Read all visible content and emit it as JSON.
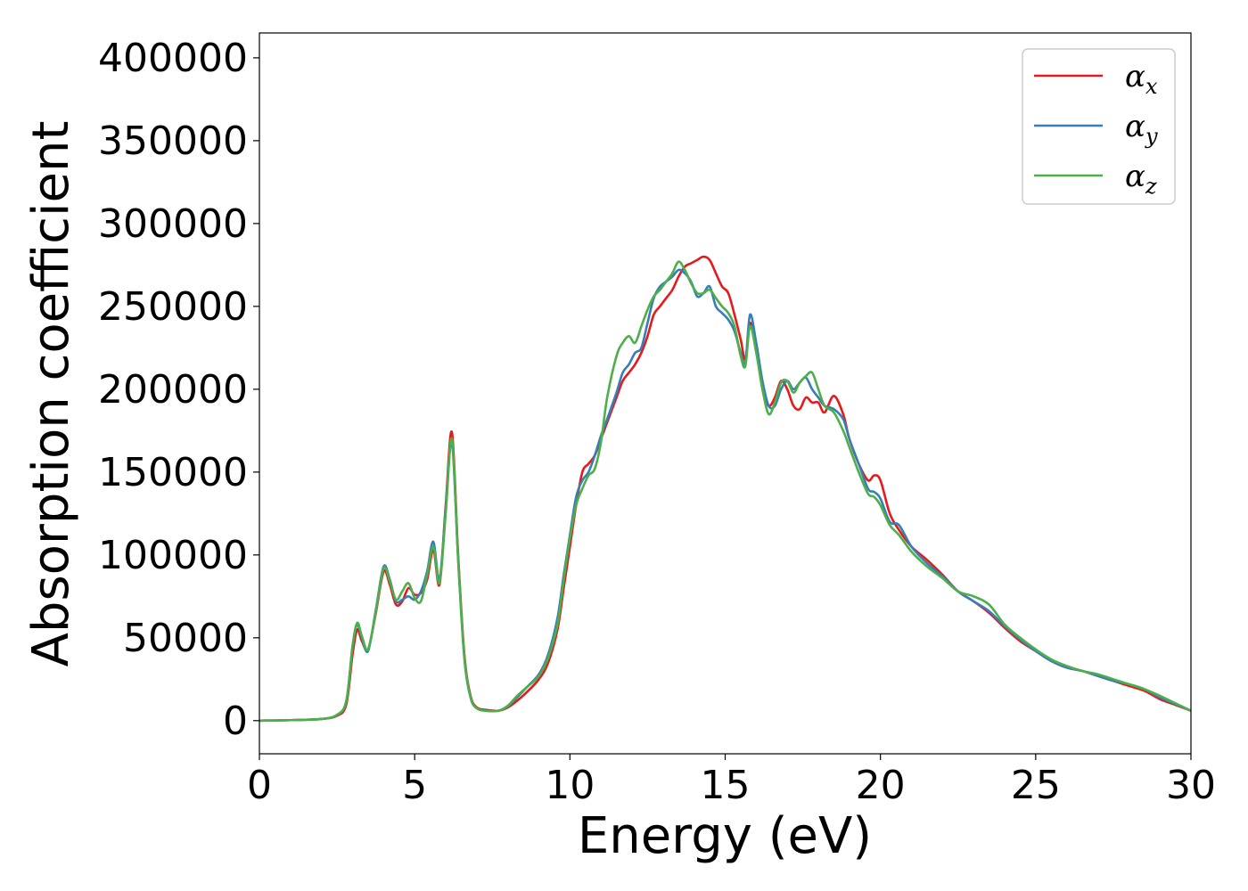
{
  "chart_data": {
    "type": "line",
    "title": "",
    "xlabel": "Energy (eV)",
    "ylabel": "Absorption coefficient",
    "xlim": [
      0,
      30
    ],
    "ylim": [
      -20000,
      415000
    ],
    "xticks": [
      0,
      5,
      10,
      15,
      20,
      25,
      30
    ],
    "yticks": [
      0,
      50000,
      100000,
      150000,
      200000,
      250000,
      300000,
      350000,
      400000
    ],
    "grid": false,
    "legend_position": "top-right",
    "series": [
      {
        "name": "α",
        "subscript": "x",
        "color": "#e41a1c",
        "x": [
          0,
          1,
          2,
          2.5,
          2.8,
          3.0,
          3.15,
          3.3,
          3.5,
          3.75,
          4.0,
          4.2,
          4.4,
          4.6,
          4.8,
          5.0,
          5.2,
          5.4,
          5.6,
          5.8,
          6.0,
          6.2,
          6.4,
          6.6,
          6.8,
          7.0,
          7.3,
          7.7,
          8.0,
          8.3,
          8.6,
          9.0,
          9.3,
          9.6,
          9.8,
          10.0,
          10.2,
          10.4,
          10.6,
          10.8,
          11.0,
          11.2,
          11.5,
          11.7,
          11.9,
          12.1,
          12.3,
          12.5,
          12.7,
          12.9,
          13.1,
          13.3,
          13.5,
          13.7,
          13.9,
          14.1,
          14.3,
          14.5,
          14.7,
          14.9,
          15.1,
          15.3,
          15.5,
          15.65,
          15.8,
          16.0,
          16.2,
          16.4,
          16.6,
          16.8,
          17.0,
          17.2,
          17.4,
          17.6,
          17.8,
          18.0,
          18.2,
          18.5,
          18.8,
          19.0,
          19.3,
          19.6,
          19.8,
          20.0,
          20.3,
          20.6,
          21.0,
          21.5,
          22.0,
          22.5,
          23.0,
          23.5,
          24.0,
          24.5,
          25.0,
          25.5,
          26.0,
          26.5,
          27.0,
          27.5,
          28.0,
          28.5,
          29.0,
          29.5,
          30.0
        ],
        "y": [
          0,
          300,
          1000,
          3000,
          10000,
          40000,
          55000,
          48000,
          43000,
          65000,
          90000,
          82000,
          70000,
          72000,
          80000,
          76000,
          77000,
          85000,
          103000,
          82000,
          130000,
          174000,
          100000,
          40000,
          15000,
          8000,
          6500,
          6000,
          8000,
          12000,
          17000,
          25000,
          35000,
          55000,
          80000,
          105000,
          130000,
          150000,
          155000,
          160000,
          170000,
          180000,
          195000,
          205000,
          210000,
          215000,
          222000,
          232000,
          245000,
          250000,
          255000,
          260000,
          268000,
          274000,
          276000,
          278000,
          280000,
          278000,
          270000,
          262000,
          258000,
          245000,
          230000,
          218000,
          240000,
          225000,
          200000,
          190000,
          195000,
          205000,
          200000,
          190000,
          188000,
          195000,
          192000,
          192000,
          186000,
          196000,
          185000,
          170000,
          155000,
          145000,
          148000,
          145000,
          125000,
          115000,
          105000,
          97000,
          88000,
          78000,
          72000,
          65000,
          56000,
          48000,
          42000,
          36000,
          32000,
          30000,
          27000,
          24000,
          21000,
          18000,
          13000,
          9500,
          6000
        ]
      },
      {
        "name": "α",
        "subscript": "y",
        "color": "#377eb8",
        "x": [
          0,
          1,
          2,
          2.5,
          2.8,
          3.0,
          3.15,
          3.3,
          3.5,
          3.75,
          4.0,
          4.2,
          4.4,
          4.6,
          4.8,
          5.0,
          5.2,
          5.4,
          5.6,
          5.8,
          6.0,
          6.2,
          6.4,
          6.6,
          6.8,
          7.0,
          7.3,
          7.7,
          8.0,
          8.3,
          8.6,
          9.0,
          9.3,
          9.6,
          9.8,
          10.0,
          10.2,
          10.4,
          10.6,
          10.8,
          11.0,
          11.2,
          11.5,
          11.7,
          11.9,
          12.1,
          12.3,
          12.5,
          12.7,
          12.9,
          13.1,
          13.3,
          13.5,
          13.7,
          13.9,
          14.1,
          14.3,
          14.5,
          14.7,
          14.9,
          15.1,
          15.3,
          15.5,
          15.65,
          15.8,
          16.0,
          16.2,
          16.4,
          16.6,
          16.8,
          17.0,
          17.2,
          17.4,
          17.6,
          17.8,
          18.0,
          18.2,
          18.5,
          18.8,
          19.0,
          19.3,
          19.6,
          19.8,
          20.0,
          20.3,
          20.6,
          21.0,
          21.5,
          22.0,
          22.5,
          23.0,
          23.5,
          24.0,
          24.5,
          25.0,
          25.5,
          26.0,
          26.5,
          27.0,
          27.5,
          28.0,
          28.5,
          29.0,
          29.5,
          30.0
        ],
        "y": [
          0,
          300,
          1000,
          3500,
          12000,
          45000,
          58000,
          50000,
          42000,
          67000,
          93000,
          85000,
          72000,
          73000,
          75000,
          73000,
          78000,
          90000,
          108000,
          85000,
          128000,
          168000,
          98000,
          38000,
          14000,
          7500,
          6000,
          6000,
          8500,
          14000,
          20000,
          28000,
          40000,
          62000,
          88000,
          112000,
          135000,
          145000,
          150000,
          160000,
          172000,
          182000,
          198000,
          210000,
          215000,
          222000,
          225000,
          240000,
          255000,
          262000,
          265000,
          268000,
          272000,
          270000,
          265000,
          256000,
          258000,
          262000,
          250000,
          246000,
          242000,
          235000,
          222000,
          216000,
          245000,
          228000,
          205000,
          190000,
          190000,
          200000,
          205000,
          200000,
          204000,
          207000,
          200000,
          195000,
          190000,
          188000,
          182000,
          170000,
          155000,
          140000,
          138000,
          134000,
          120000,
          118000,
          105000,
          95000,
          87000,
          78000,
          72000,
          66000,
          57000,
          49000,
          42000,
          36000,
          32000,
          30000,
          27000,
          24000,
          22000,
          19000,
          14000,
          10000,
          6000
        ]
      },
      {
        "name": "α",
        "subscript": "z",
        "color": "#4daf4a",
        "x": [
          0,
          1,
          2,
          2.5,
          2.8,
          3.0,
          3.15,
          3.3,
          3.5,
          3.75,
          4.0,
          4.2,
          4.4,
          4.6,
          4.8,
          5.0,
          5.2,
          5.4,
          5.6,
          5.8,
          6.0,
          6.2,
          6.4,
          6.6,
          6.8,
          7.0,
          7.3,
          7.7,
          8.0,
          8.3,
          8.6,
          9.0,
          9.3,
          9.6,
          9.8,
          10.0,
          10.2,
          10.4,
          10.6,
          10.8,
          11.0,
          11.2,
          11.5,
          11.7,
          11.9,
          12.1,
          12.3,
          12.5,
          12.7,
          12.9,
          13.1,
          13.3,
          13.5,
          13.7,
          13.9,
          14.1,
          14.3,
          14.5,
          14.7,
          14.9,
          15.1,
          15.3,
          15.5,
          15.65,
          15.8,
          16.0,
          16.2,
          16.4,
          16.6,
          16.8,
          17.0,
          17.2,
          17.4,
          17.6,
          17.8,
          18.0,
          18.2,
          18.5,
          18.8,
          19.0,
          19.3,
          19.6,
          19.8,
          20.0,
          20.3,
          20.6,
          21.0,
          21.5,
          22.0,
          22.5,
          23.0,
          23.5,
          24.0,
          24.5,
          25.0,
          25.5,
          26.0,
          26.5,
          27.0,
          27.5,
          28.0,
          28.5,
          29.0,
          29.5,
          30.0
        ],
        "y": [
          0,
          300,
          1000,
          3500,
          12000,
          45000,
          59000,
          51000,
          43000,
          66000,
          92000,
          84000,
          73000,
          78000,
          83000,
          74000,
          72000,
          88000,
          105000,
          83000,
          125000,
          170000,
          97000,
          38000,
          14000,
          7500,
          6000,
          6000,
          9000,
          15000,
          20000,
          27000,
          38000,
          58000,
          85000,
          110000,
          130000,
          140000,
          148000,
          152000,
          168000,
          195000,
          220000,
          228000,
          232000,
          228000,
          238000,
          248000,
          256000,
          260000,
          265000,
          270000,
          277000,
          272000,
          264000,
          258000,
          258000,
          260000,
          255000,
          250000,
          246000,
          238000,
          220000,
          214000,
          238000,
          222000,
          200000,
          185000,
          192000,
          204000,
          205000,
          198000,
          204000,
          208000,
          210000,
          200000,
          190000,
          186000,
          175000,
          165000,
          150000,
          137000,
          135000,
          130000,
          118000,
          112000,
          102000,
          93000,
          86000,
          78000,
          75000,
          70000,
          58000,
          50000,
          43000,
          37000,
          33000,
          30000,
          28000,
          25000,
          22000,
          19000,
          15000,
          10500,
          6000
        ]
      }
    ]
  }
}
